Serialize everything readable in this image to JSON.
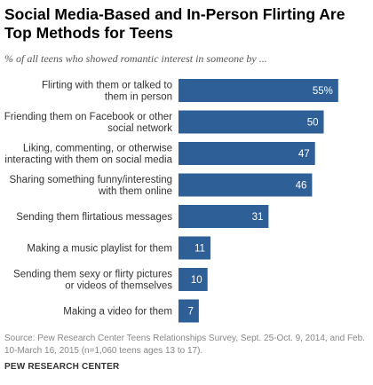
{
  "header": {
    "title": "Social Media-Based and In-Person Flirting Are Top Methods for Teens",
    "subtitle": "% of all teens who showed romantic interest in someone by ..."
  },
  "chart_data": {
    "type": "bar",
    "orientation": "horizontal",
    "title": "Social Media-Based and In-Person Flirting Are Top Methods for Teens",
    "subtitle": "% of all teens who showed romantic interest in someone by ...",
    "categories": [
      [
        "Flirting with them or talked to",
        "them in person"
      ],
      [
        "Friending them on Facebook or other",
        "social network"
      ],
      [
        "Liking, commenting, or otherwise",
        "interacting with them on social media"
      ],
      [
        "Sharing something funny/interesting",
        "with them online"
      ],
      [
        "Sending them flirtatious messages"
      ],
      [
        "Making a music playlist for them"
      ],
      [
        "Sending them sexy or flirty pictures",
        "or videos of themselves"
      ],
      [
        "Making a video for them"
      ]
    ],
    "values": [
      55,
      50,
      47,
      46,
      31,
      11,
      10,
      7
    ],
    "value_labels": [
      "55%",
      "50",
      "47",
      "46",
      "31",
      "11",
      "10",
      "7"
    ],
    "bar_color": "#2e5f97",
    "grid": false,
    "legend": "none"
  },
  "footer": {
    "source": "Source: Pew Research Center Teens Relationships Survey, Sept. 25-Oct. 9, 2014, and Feb. 10-March 16, 2015 (n=1,060 teens ages 13 to 17).",
    "brand": "PEW RESEARCH CENTER"
  }
}
